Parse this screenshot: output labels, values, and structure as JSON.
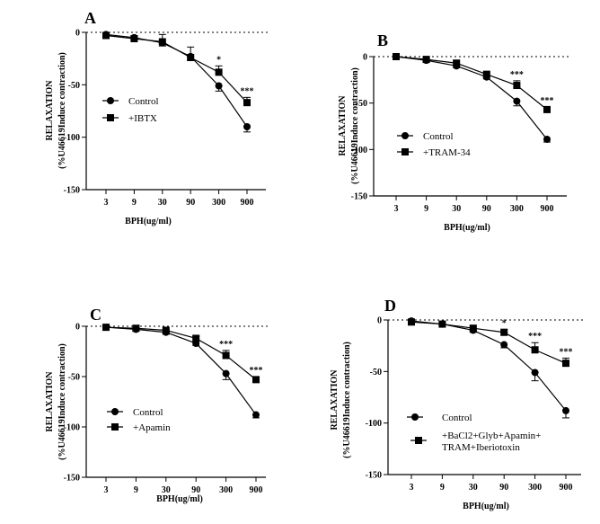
{
  "chart_data": [
    {
      "type": "line",
      "panel_label": "A",
      "categories": [
        "3",
        "9",
        "30",
        "90",
        "300",
        "900"
      ],
      "xlabel": "BPH(ug/ml)",
      "ylabel": "RELAXATION",
      "ylabel2": "(%U46619Induce contraction)",
      "ylim": [
        -150,
        0
      ],
      "yticks": [
        0,
        -50,
        -100,
        -150
      ],
      "y_ticks_labels": [
        "0",
        "-50",
        "-100",
        "-150"
      ],
      "zero_line": "dotted",
      "legend_position": "center-left",
      "series": [
        {
          "name": "Control",
          "marker": "circle",
          "values": [
            -2,
            -5,
            -10,
            -23,
            -51,
            -90
          ],
          "errors": [
            1,
            2,
            3,
            3,
            5,
            5
          ]
        },
        {
          "name": "+IBTX",
          "marker": "square",
          "values": [
            -3,
            -6,
            -9,
            -24,
            -38,
            -67
          ],
          "errors": [
            1,
            2,
            7,
            10,
            6,
            5
          ]
        }
      ],
      "significance": [
        {
          "category": "300",
          "label": "*"
        },
        {
          "category": "900",
          "label": "***"
        }
      ]
    },
    {
      "type": "line",
      "panel_label": "B",
      "categories": [
        "3",
        "9",
        "30",
        "90",
        "300",
        "900"
      ],
      "xlabel": "BPH(ug/ml)",
      "ylabel": "RELAXATION",
      "ylabel2": "(%U46619Induce contraction)",
      "ylim": [
        -150,
        0
      ],
      "yticks": [
        0,
        -50,
        -100,
        -150
      ],
      "y_ticks_labels": [
        "0",
        "-50",
        "-100",
        "-150"
      ],
      "zero_line": "dotted",
      "legend_position": "bottom-left",
      "series": [
        {
          "name": "Control",
          "marker": "circle",
          "values": [
            0,
            -4,
            -10,
            -22,
            -48,
            -89
          ],
          "errors": [
            1,
            2,
            2,
            2,
            5,
            3
          ]
        },
        {
          "name": "+TRAM-34",
          "marker": "square",
          "values": [
            0,
            -3,
            -7,
            -19,
            -31,
            -57
          ],
          "errors": [
            1,
            1,
            2,
            2,
            5,
            3
          ]
        }
      ],
      "significance": [
        {
          "category": "300",
          "label": "***"
        },
        {
          "category": "900",
          "label": "***"
        }
      ]
    },
    {
      "type": "line",
      "panel_label": "C",
      "categories": [
        "3",
        "9",
        "30",
        "90",
        "300",
        "900"
      ],
      "xlabel": "BPH(ug/ml)",
      "ylabel": "RELAXATION",
      "ylabel2": "(%U46619Induce contraction)",
      "ylim": [
        -150,
        0
      ],
      "yticks": [
        0,
        -50,
        -100,
        -150
      ],
      "y_ticks_labels": [
        "0",
        "-50",
        "-100",
        "-150"
      ],
      "zero_line": "dotted",
      "legend_position": "bottom-left",
      "series": [
        {
          "name": "Control",
          "marker": "circle",
          "values": [
            -1,
            -3,
            -6,
            -17,
            -47,
            -88
          ],
          "errors": [
            1,
            1,
            2,
            2,
            6,
            3
          ]
        },
        {
          "name": "+Apamin",
          "marker": "square",
          "values": [
            -1,
            -2,
            -4,
            -12,
            -29,
            -53
          ],
          "errors": [
            1,
            1,
            1,
            2,
            5,
            3
          ]
        }
      ],
      "significance": [
        {
          "category": "300",
          "label": "***"
        },
        {
          "category": "900",
          "label": "***"
        }
      ]
    },
    {
      "type": "line",
      "panel_label": "D",
      "categories": [
        "3",
        "9",
        "30",
        "90",
        "300",
        "900"
      ],
      "xlabel": "BPH(ug/ml)",
      "ylabel": "RELAXATION",
      "ylabel2": "(%U46619Induce contraction)",
      "ylim": [
        -150,
        0
      ],
      "yticks": [
        0,
        -50,
        -100,
        -150
      ],
      "y_ticks_labels": [
        "0",
        "-50",
        "-100",
        "-150"
      ],
      "zero_line": "dotted",
      "legend_position": "bottom-left",
      "series": [
        {
          "name": "Control",
          "marker": "circle",
          "values": [
            -1,
            -4,
            -10,
            -24,
            -51,
            -88
          ],
          "errors": [
            1,
            1,
            2,
            3,
            8,
            7
          ]
        },
        {
          "name": "+BaCl2+Glyb+Apamin+\nTRAM+Iberiotoxin",
          "marker": "square",
          "values": [
            -2,
            -4,
            -8,
            -12,
            -29,
            -42
          ],
          "errors": [
            1,
            1,
            2,
            3,
            7,
            5
          ]
        }
      ],
      "significance": [
        {
          "category": "90",
          "label": "*"
        },
        {
          "category": "300",
          "label": "***"
        },
        {
          "category": "900",
          "label": "***"
        }
      ]
    }
  ]
}
